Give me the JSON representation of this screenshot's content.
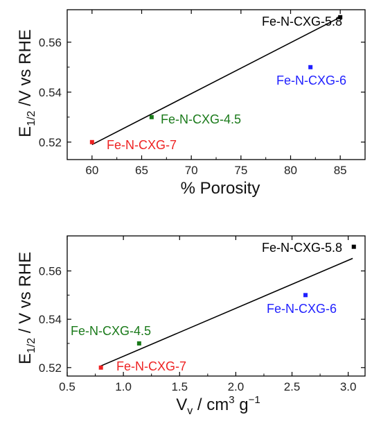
{
  "chart_data": [
    {
      "type": "scatter",
      "title": "",
      "xlabel": "% Porosity",
      "ylabel_parts": {
        "main": "E",
        "sub": "1/2",
        "rest": " /V vs RHE"
      },
      "xlim": [
        57.5,
        87.5
      ],
      "ylim": [
        0.513,
        0.573
      ],
      "xticks": [
        "60",
        "65",
        "70",
        "75",
        "80",
        "85"
      ],
      "yticks": [
        "0.52",
        "0.54",
        "0.56"
      ],
      "points": [
        {
          "label": "Fe-N-CXG-5.8",
          "x": 85,
          "y": 0.57,
          "color": "#000000"
        },
        {
          "label": "Fe-N-CXG-6",
          "x": 82,
          "y": 0.55,
          "color": "#1f1fff"
        },
        {
          "label": "Fe-N-CXG-4.5",
          "x": 66,
          "y": 0.53,
          "color": "#1a7a1a"
        },
        {
          "label": "Fe-N-CXG-7",
          "x": 60,
          "y": 0.52,
          "color": "#ee2222"
        }
      ],
      "fit_line": {
        "x": [
          60,
          85
        ],
        "y": [
          0.519,
          0.57
        ]
      },
      "grid": false,
      "legend": "none"
    },
    {
      "type": "scatter",
      "title": "",
      "xlabel_parts": {
        "main": "V",
        "sub": "v",
        "mid": " / cm",
        "sup": "3",
        "mid2": " g",
        "sup2": "−1"
      },
      "ylabel_parts": {
        "main": "E",
        "sub": "1/2",
        "rest": " / V vs RHE"
      },
      "xlim": [
        0.5,
        3.15
      ],
      "ylim": [
        0.5165,
        0.5745
      ],
      "xticks": [
        "0.5",
        "1.0",
        "1.5",
        "2.0",
        "2.5",
        "3.0"
      ],
      "yticks": [
        "0.52",
        "0.54",
        "0.56"
      ],
      "points": [
        {
          "label": "Fe-N-CXG-5.8",
          "x": 3.05,
          "y": 0.57,
          "color": "#000000"
        },
        {
          "label": "Fe-N-CXG-6",
          "x": 2.62,
          "y": 0.55,
          "color": "#1f1fff"
        },
        {
          "label": "Fe-N-CXG-4.5",
          "x": 1.14,
          "y": 0.53,
          "color": "#1a7a1a"
        },
        {
          "label": "Fe-N-CXG-7",
          "x": 0.8,
          "y": 0.52,
          "color": "#ee2222"
        }
      ],
      "fit_line": {
        "x": [
          0.79,
          3.04
        ],
        "y": [
          0.5205,
          0.5652
        ]
      },
      "grid": false,
      "legend": "none"
    }
  ]
}
